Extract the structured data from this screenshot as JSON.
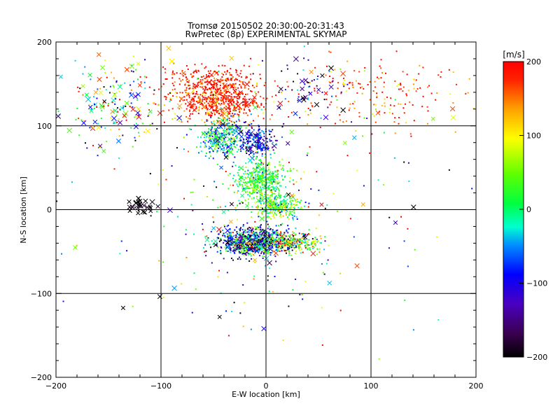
{
  "chart_data": {
    "type": "scatter",
    "title": "Tromsø 20150502 20:30:00-20:31:43",
    "subtitle": "RwPretec (8p) EXPERIMENTAL SKYMAP",
    "xlabel": "E-W location [km]",
    "ylabel": "N-S location [km]",
    "xlim": [
      -200,
      200
    ],
    "ylim": [
      -200,
      200
    ],
    "xticks": [
      -200,
      -100,
      0,
      100,
      200
    ],
    "yticks": [
      -200,
      -100,
      0,
      100,
      200
    ],
    "grid": true,
    "colorbar": {
      "label": "[m/s]",
      "range": [
        -200,
        200
      ],
      "ticks": [
        200,
        100,
        0,
        -100,
        -200
      ],
      "colormap": "rainbow: black(-200) → purple → blue → cyan → green(0) → yellow(100) → orange → red(200)",
      "placement": "right"
    },
    "markers": [
      "dot",
      "x"
    ],
    "series": [
      {
        "x": -45,
        "y": 130,
        "spread_x": 35,
        "spread_y": 22,
        "v_mean": 180,
        "v_spread": 40,
        "count": 600,
        "big_x_fraction": 0.05
      },
      {
        "x": -55,
        "y": 155,
        "spread_x": 40,
        "spread_y": 15,
        "v_mean": 190,
        "v_spread": 25,
        "count": 200,
        "big_x_fraction": 0.03
      },
      {
        "x": -40,
        "y": 85,
        "spread_x": 20,
        "spread_y": 20,
        "v_mean": -20,
        "v_spread": 60,
        "count": 350,
        "big_x_fraction": 0.06
      },
      {
        "x": -10,
        "y": 80,
        "spread_x": 15,
        "spread_y": 15,
        "v_mean": -100,
        "v_spread": 40,
        "count": 200,
        "big_x_fraction": 0.05
      },
      {
        "x": -5,
        "y": 35,
        "spread_x": 20,
        "spread_y": 18,
        "v_mean": 20,
        "v_spread": 40,
        "count": 400,
        "big_x_fraction": 0.03
      },
      {
        "x": 10,
        "y": 5,
        "spread_x": 18,
        "spread_y": 12,
        "v_mean": 40,
        "v_spread": 50,
        "count": 300,
        "big_x_fraction": 0.03
      },
      {
        "x": -10,
        "y": -38,
        "spread_x": 30,
        "spread_y": 14,
        "v_mean": -80,
        "v_spread": 120,
        "count": 900,
        "big_x_fraction": 0.08
      },
      {
        "x": 30,
        "y": -40,
        "spread_x": 20,
        "spread_y": 10,
        "v_mean": 60,
        "v_spread": 90,
        "count": 200,
        "big_x_fraction": 0.06
      },
      {
        "x": -150,
        "y": 130,
        "spread_x": 40,
        "spread_y": 50,
        "v_mean": 20,
        "v_spread": 120,
        "count": 180,
        "big_x_fraction": 0.3
      },
      {
        "x": -120,
        "y": 5,
        "spread_x": 10,
        "spread_y": 8,
        "v_mean": -200,
        "v_spread": 10,
        "count": 30,
        "big_x_fraction": 0.9
      },
      {
        "x": 100,
        "y": 140,
        "spread_x": 70,
        "spread_y": 40,
        "v_mean": 170,
        "v_spread": 50,
        "count": 200,
        "big_x_fraction": 0.05
      },
      {
        "x": 40,
        "y": 140,
        "spread_x": 30,
        "spread_y": 30,
        "v_mean": -130,
        "v_spread": 60,
        "count": 60,
        "big_x_fraction": 0.3
      },
      {
        "x": 0,
        "y": 0,
        "spread_x": 130,
        "spread_y": 130,
        "v_mean": 0,
        "v_spread": 140,
        "count": 260,
        "big_x_fraction": 0.15
      }
    ]
  }
}
